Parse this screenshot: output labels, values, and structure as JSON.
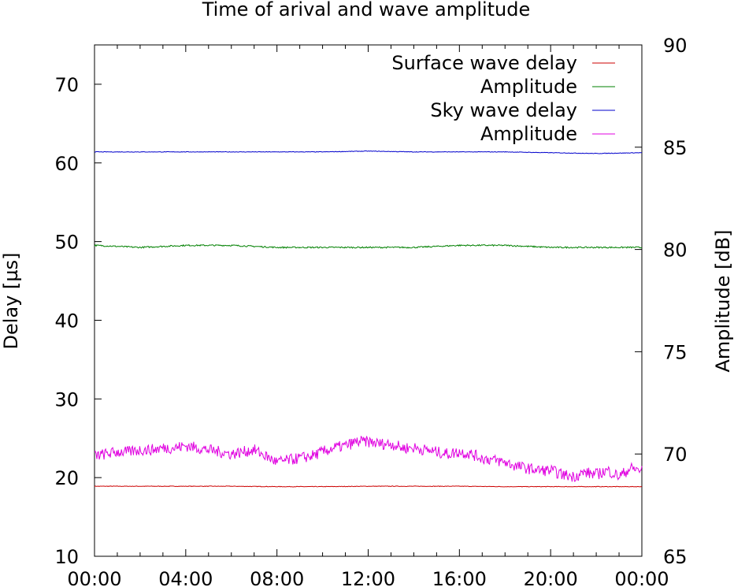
{
  "chart_data": {
    "type": "line",
    "title": "Time of arival and wave amplitude",
    "xlabel": "",
    "ylabel": "Delay [µs]",
    "y2label": "Amplitude [dB]",
    "x_ticks": [
      "00:00",
      "04:00",
      "08:00",
      "12:00",
      "16:00",
      "20:00",
      "00:00"
    ],
    "x_range_hours": [
      0,
      24
    ],
    "ylim": [
      10,
      75
    ],
    "y_ticks": [
      10,
      20,
      30,
      40,
      50,
      60,
      70
    ],
    "y2lim": [
      65,
      90
    ],
    "y2_ticks": [
      65,
      70,
      75,
      80,
      85,
      90
    ],
    "legend_position": "top-right",
    "grid": false,
    "series": [
      {
        "name": "Surface wave delay",
        "axis": "left",
        "color": "#cc0000",
        "x": [
          0,
          2,
          4,
          6,
          8,
          10,
          12,
          14,
          16,
          18,
          20,
          22,
          24
        ],
        "values": [
          18.9,
          18.9,
          18.9,
          18.9,
          18.85,
          18.85,
          18.9,
          18.9,
          18.9,
          18.85,
          18.85,
          18.85,
          18.85
        ]
      },
      {
        "name": "Amplitude",
        "axis": "right",
        "color": "#008000",
        "x": [
          0,
          2,
          4,
          6,
          8,
          10,
          12,
          14,
          16,
          18,
          20,
          22,
          24
        ],
        "values": [
          80.2,
          80.1,
          80.2,
          80.2,
          80.1,
          80.1,
          80.1,
          80.1,
          80.2,
          80.2,
          80.1,
          80.1,
          80.1
        ]
      },
      {
        "name": "Sky wave delay",
        "axis": "left",
        "color": "#0000cc",
        "x": [
          0,
          2,
          4,
          6,
          8,
          10,
          12,
          14,
          16,
          18,
          20,
          22,
          24
        ],
        "values": [
          61.4,
          61.4,
          61.4,
          61.4,
          61.4,
          61.4,
          61.5,
          61.4,
          61.4,
          61.4,
          61.3,
          61.2,
          61.3
        ]
      },
      {
        "name": "Amplitude",
        "axis": "right",
        "color": "#e000e0",
        "x": [
          0,
          0.5,
          1,
          1.5,
          2,
          2.5,
          3,
          3.5,
          4,
          4.5,
          5,
          5.5,
          6,
          6.5,
          7,
          7.5,
          8,
          8.5,
          9,
          9.5,
          10,
          10.5,
          11,
          11.5,
          12,
          12.5,
          13,
          13.5,
          14,
          14.5,
          15,
          15.5,
          16,
          16.5,
          17,
          17.5,
          18,
          18.5,
          19,
          19.5,
          20,
          20.5,
          21,
          21.5,
          22,
          22.5,
          23,
          23.5,
          24
        ],
        "values": [
          69.9,
          70.0,
          70.1,
          70.1,
          70.2,
          70.2,
          70.3,
          70.3,
          70.4,
          70.3,
          70.2,
          70.1,
          70.0,
          70.1,
          70.2,
          69.9,
          69.6,
          69.7,
          69.8,
          69.9,
          70.1,
          70.3,
          70.4,
          70.6,
          70.6,
          70.5,
          70.5,
          70.3,
          70.3,
          70.2,
          70.1,
          70.0,
          70.1,
          70.0,
          69.8,
          69.7,
          69.6,
          69.4,
          69.3,
          69.2,
          69.2,
          69.0,
          68.9,
          69.1,
          69.0,
          69.2,
          68.9,
          69.3,
          69.2
        ]
      }
    ]
  }
}
